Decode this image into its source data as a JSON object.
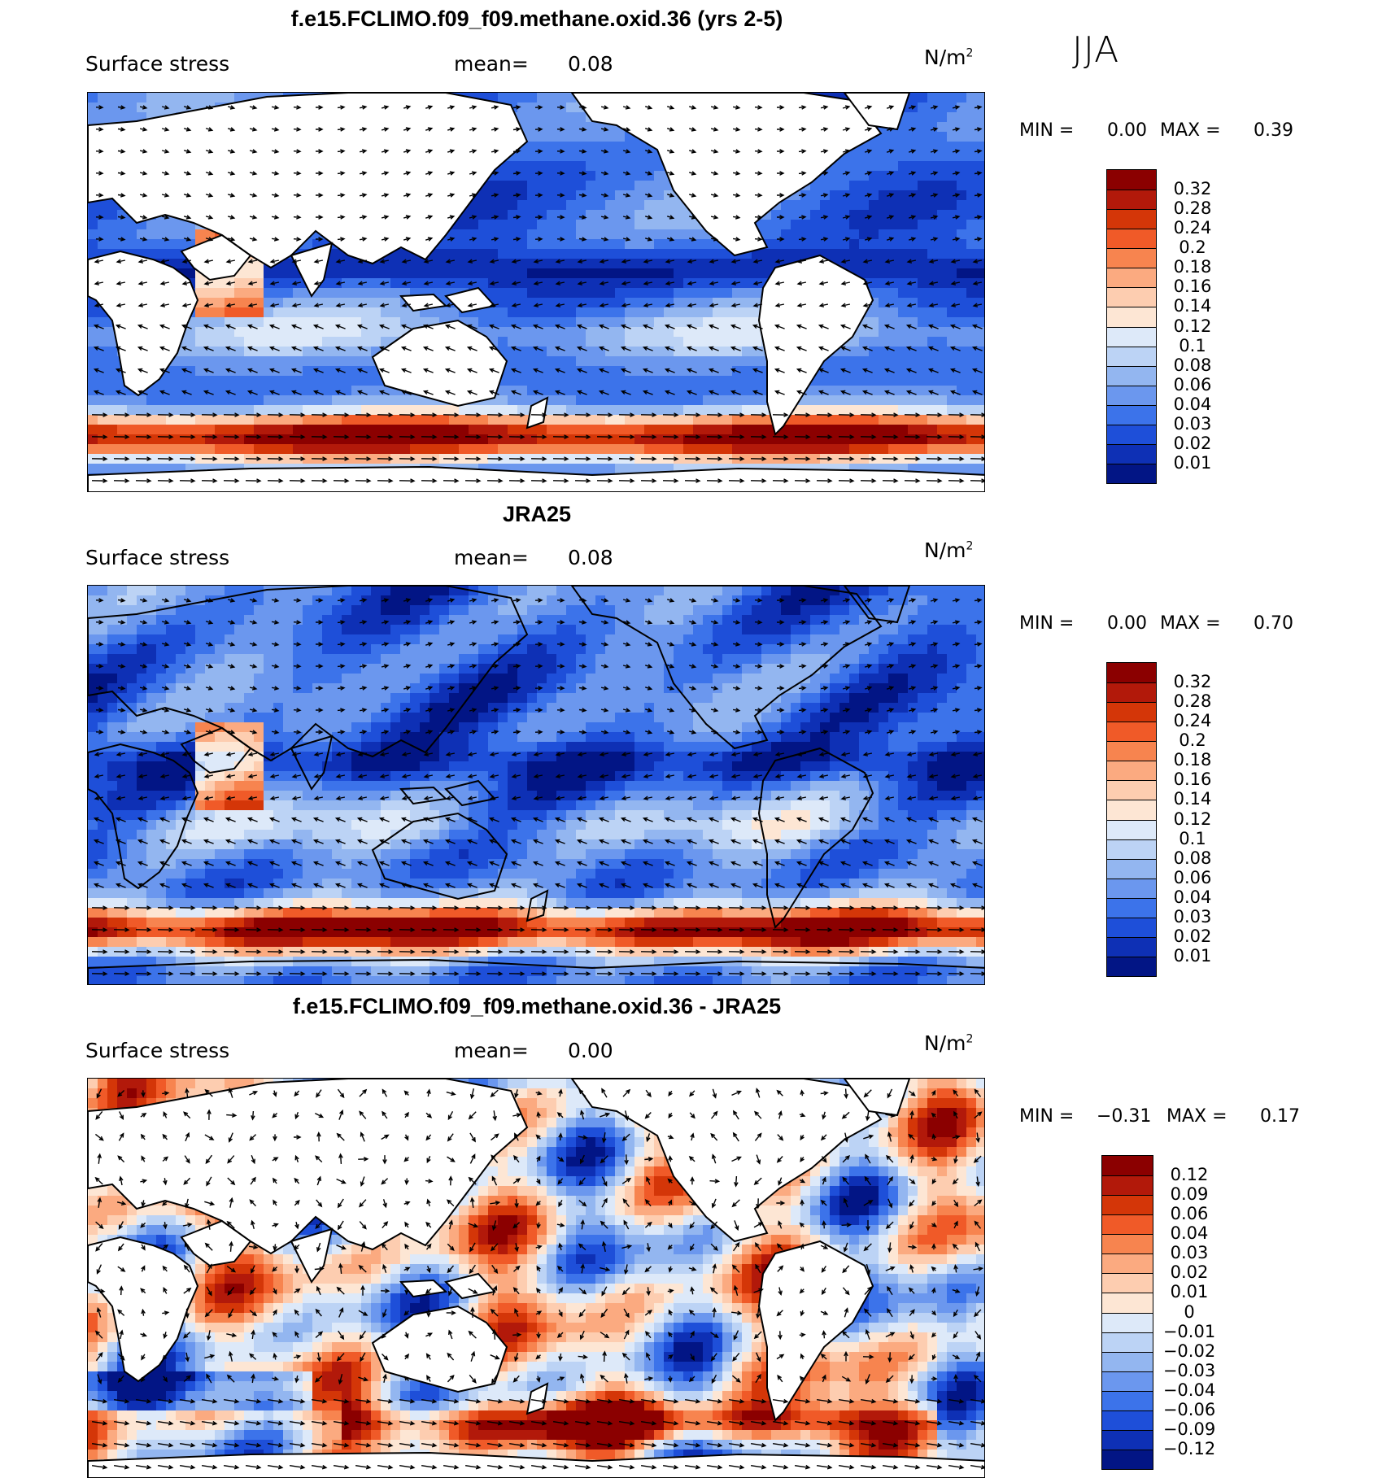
{
  "season": "JJA",
  "panels": [
    {
      "title": "f.e15.FCLIMO.f09_f09.methane.oxid.36 (yrs 2-5)",
      "variable": "Surface stress",
      "mean_label": "mean=",
      "mean_value": "0.08",
      "units_base": "N/m",
      "units_exp": "2",
      "min_label": "MIN =",
      "min_value": "0.00",
      "max_label": "MAX =",
      "max_value": "0.39",
      "scale_labels": [
        "0.32",
        "0.28",
        "0.24",
        "0.2",
        "0.18",
        "0.16",
        "0.14",
        "0.12",
        "0.1",
        "0.08",
        "0.06",
        "0.04",
        "0.03",
        "0.02",
        "0.01"
      ],
      "scale_colors": [
        "#8b0000",
        "#b2190a",
        "#d43608",
        "#f05a28",
        "#f7844f",
        "#fbaa80",
        "#fdcdb0",
        "#fde6d4",
        "#dde9f9",
        "#bcd3f5",
        "#93b6f0",
        "#6b97ee",
        "#3c73ea",
        "#1e4fd9",
        "#0e30b5",
        "#021585"
      ]
    },
    {
      "title": "JRA25",
      "variable": "Surface stress",
      "mean_label": "mean=",
      "mean_value": "0.08",
      "units_base": "N/m",
      "units_exp": "2",
      "min_label": "MIN =",
      "min_value": "0.00",
      "max_label": "MAX =",
      "max_value": "0.70",
      "scale_labels": [
        "0.32",
        "0.28",
        "0.24",
        "0.2",
        "0.18",
        "0.16",
        "0.14",
        "0.12",
        "0.1",
        "0.08",
        "0.06",
        "0.04",
        "0.03",
        "0.02",
        "0.01"
      ],
      "scale_colors": [
        "#8b0000",
        "#b2190a",
        "#d43608",
        "#f05a28",
        "#f7844f",
        "#fbaa80",
        "#fdcdb0",
        "#fde6d4",
        "#dde9f9",
        "#bcd3f5",
        "#93b6f0",
        "#6b97ee",
        "#3c73ea",
        "#1e4fd9",
        "#0e30b5",
        "#021585"
      ]
    },
    {
      "title": "f.e15.FCLIMO.f09_f09.methane.oxid.36 - JRA25",
      "variable": "Surface stress",
      "mean_label": "mean=",
      "mean_value": "0.00",
      "units_base": "N/m",
      "units_exp": "2",
      "min_label": "MIN =",
      "min_value": "−0.31",
      "max_label": "MAX =",
      "max_value": "0.17",
      "scale_labels": [
        "0.12",
        "0.09",
        "0.06",
        "0.04",
        "0.03",
        "0.02",
        "0.01",
        "0",
        "−0.01",
        "−0.02",
        "−0.03",
        "−0.04",
        "−0.06",
        "−0.09",
        "−0.12"
      ],
      "scale_colors": [
        "#8b0000",
        "#b2190a",
        "#d43608",
        "#f05a28",
        "#f7844f",
        "#fbaa80",
        "#fdcdb0",
        "#fde6d4",
        "#dde9f9",
        "#bcd3f5",
        "#93b6f0",
        "#6b97ee",
        "#3c73ea",
        "#1e4fd9",
        "#0e30b5",
        "#021585"
      ]
    }
  ]
}
